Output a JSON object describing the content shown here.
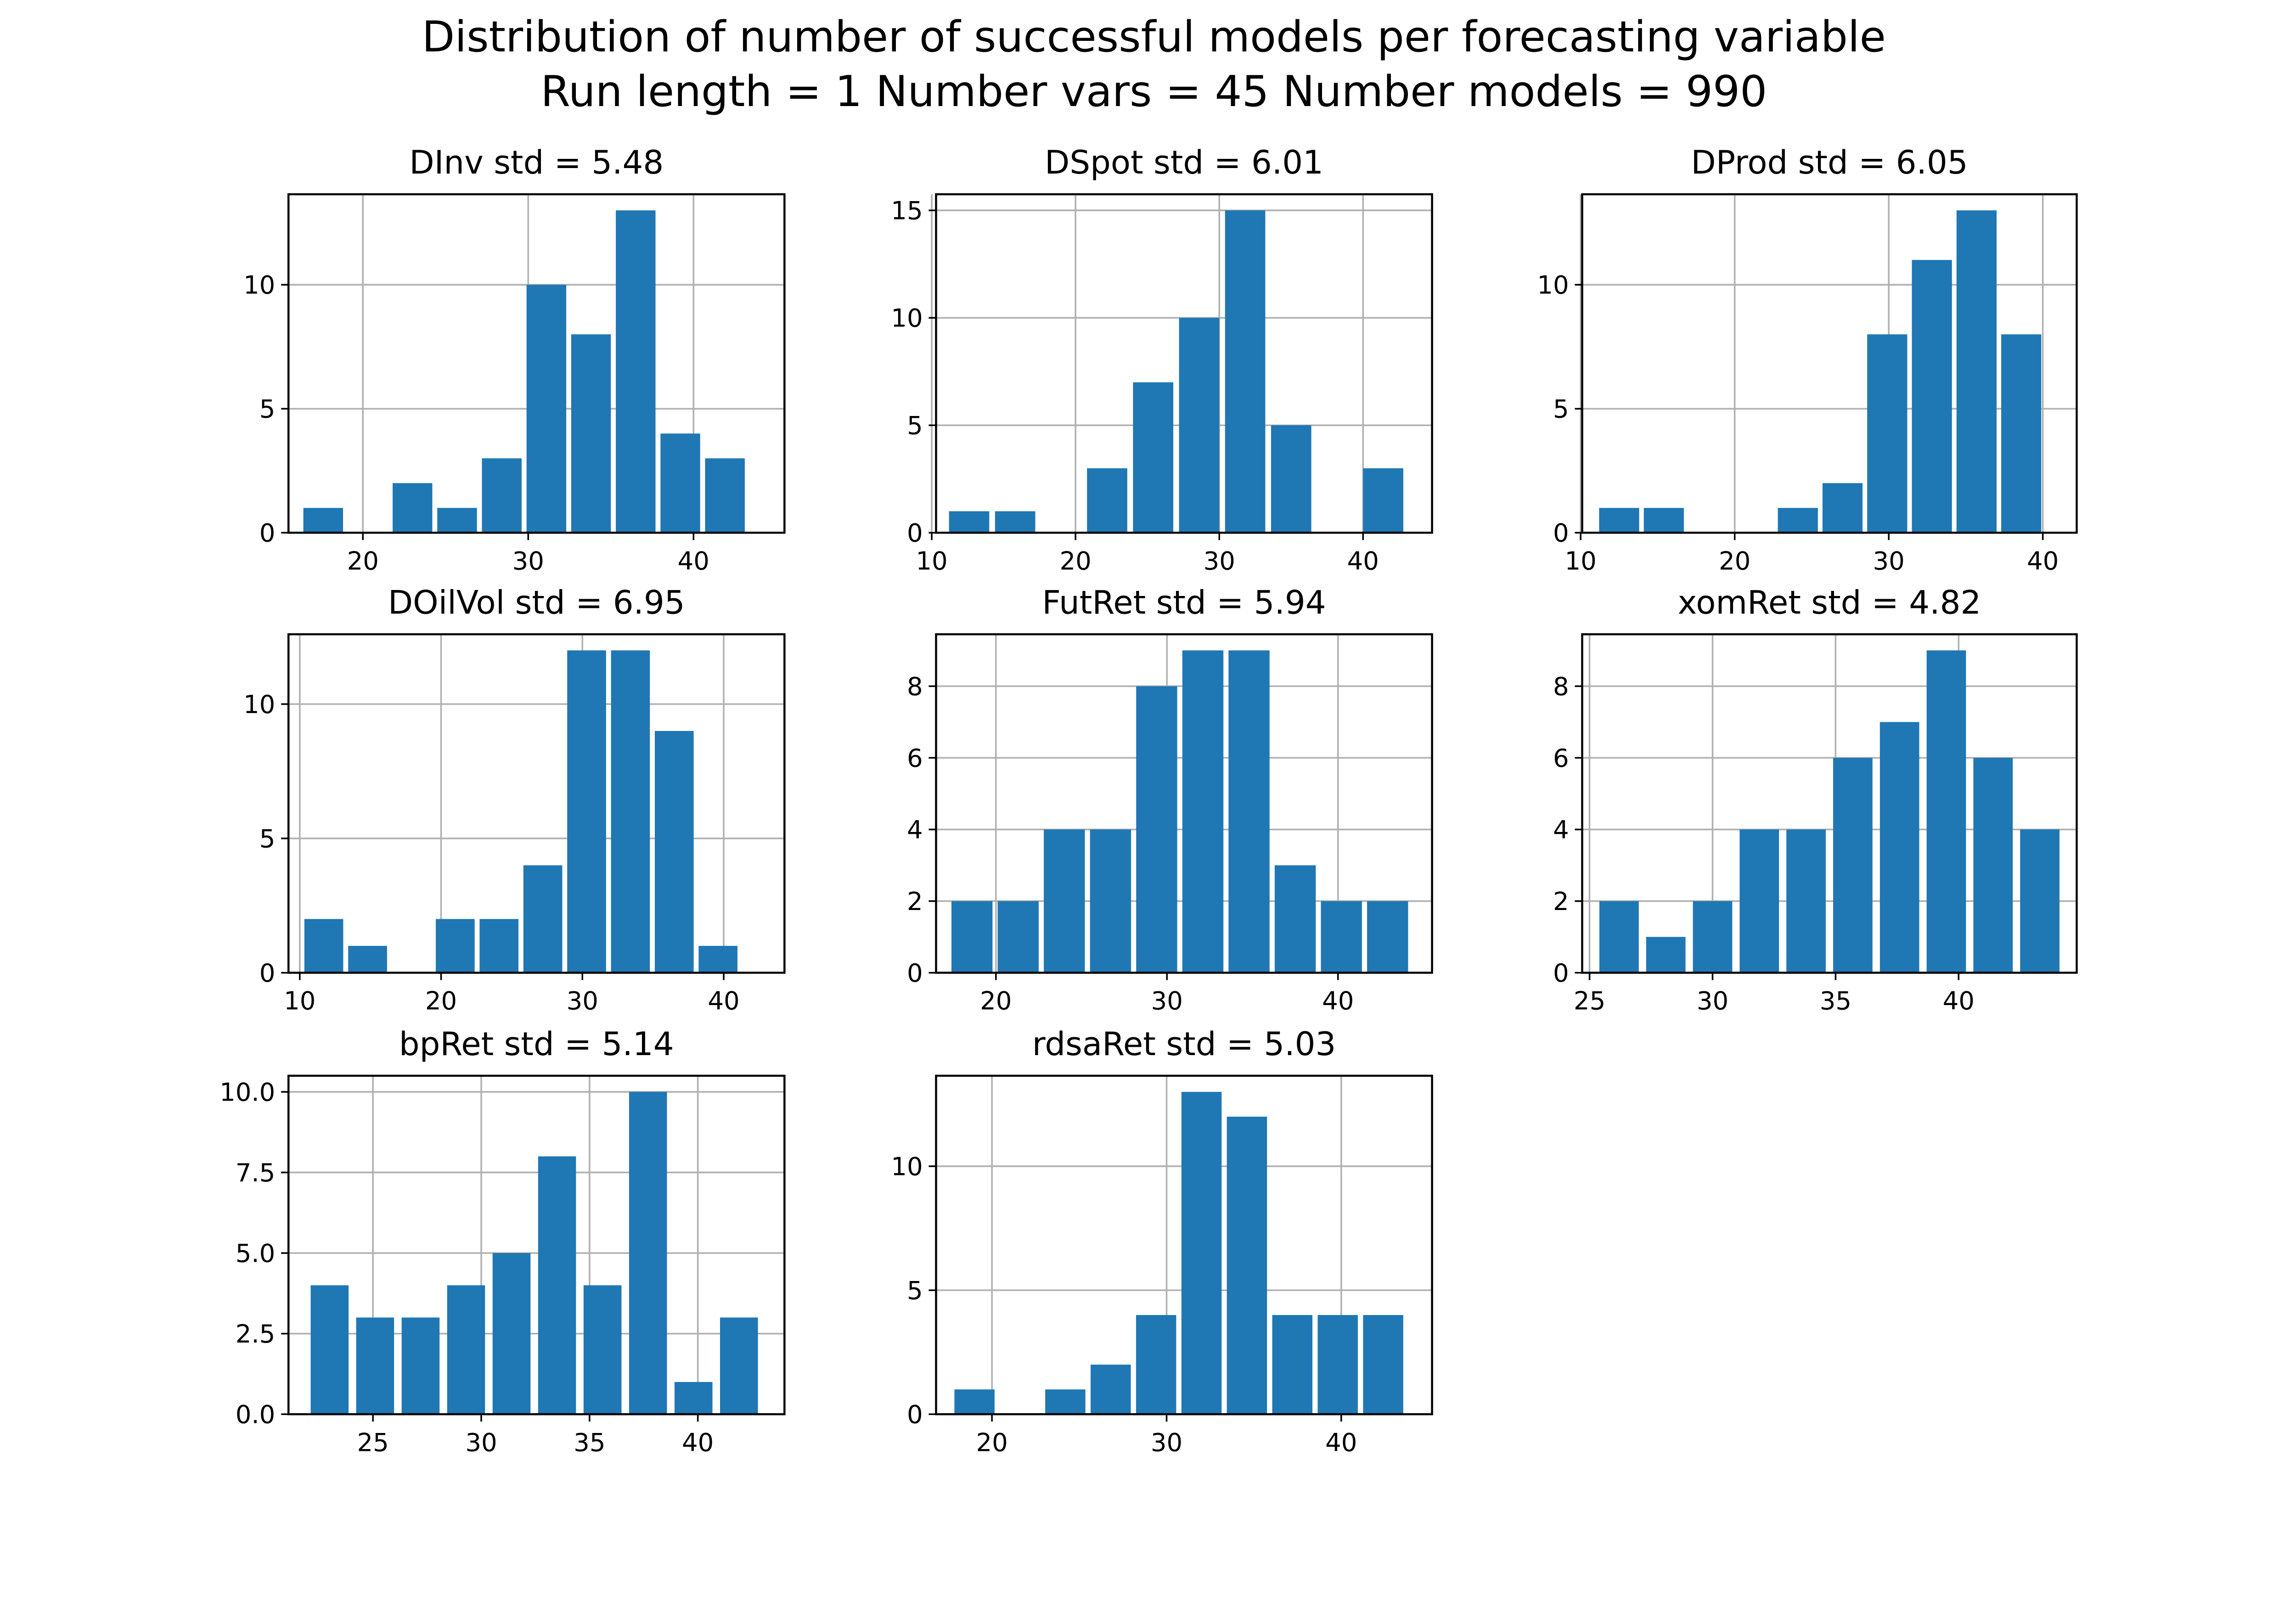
{
  "figure": {
    "title_line1": "Distribution of number of successful models per forecasting variable",
    "title_line2": "Run length = 1  Number vars = 45  Number models = 990"
  },
  "colors": {
    "bar": "#1f77b4",
    "grid": "#b0b0b0",
    "axes": "#000000",
    "background": "#ffffff"
  },
  "chart_data": [
    {
      "type": "bar",
      "title": "DInv std = 5.48",
      "grid": true,
      "xlim": [
        15.5,
        45.5
      ],
      "ylim": [
        0,
        13.65
      ],
      "xticks": [
        20,
        30,
        40
      ],
      "yticks": [
        0,
        5,
        10
      ],
      "bin_width": 2.4,
      "x": [
        17.6,
        20.3,
        23.0,
        25.7,
        28.4,
        31.1,
        33.8,
        36.5,
        39.2,
        41.9
      ],
      "values": [
        1,
        0,
        2,
        1,
        3,
        10,
        8,
        13,
        4,
        3
      ]
    },
    {
      "type": "bar",
      "title": "DSpot std = 6.01",
      "grid": true,
      "xlim": [
        10.3,
        44.8
      ],
      "ylim": [
        0,
        15.75
      ],
      "xticks": [
        10,
        20,
        30,
        40
      ],
      "yticks": [
        0,
        5,
        10,
        15
      ],
      "bin_width": 2.8,
      "x": [
        12.6,
        15.8,
        19.0,
        22.2,
        25.4,
        28.6,
        31.8,
        35.0,
        38.2,
        41.4
      ],
      "values": [
        1,
        1,
        0,
        3,
        7,
        10,
        15,
        5,
        0,
        3
      ]
    },
    {
      "type": "bar",
      "title": "DProd std = 6.05",
      "grid": true,
      "xlim": [
        10.1,
        42.2
      ],
      "ylim": [
        0,
        13.65
      ],
      "xticks": [
        10,
        20,
        30,
        40
      ],
      "yticks": [
        0,
        5,
        10
      ],
      "bin_width": 2.6,
      "x": [
        12.5,
        15.4,
        18.3,
        21.2,
        24.1,
        27.0,
        29.9,
        32.8,
        35.7,
        38.6
      ],
      "values": [
        1,
        1,
        0,
        0,
        1,
        2,
        8,
        11,
        13,
        8
      ]
    },
    {
      "type": "bar",
      "title": "DOilVol std = 6.95",
      "grid": true,
      "xlim": [
        9.2,
        44.3
      ],
      "ylim": [
        0,
        12.6
      ],
      "xticks": [
        10,
        20,
        30,
        40
      ],
      "yticks": [
        0,
        5,
        10
      ],
      "bin_width": 2.75,
      "x": [
        11.7,
        14.8,
        17.9,
        21.0,
        24.1,
        27.2,
        30.3,
        33.4,
        36.5,
        39.6
      ],
      "values": [
        2,
        1,
        0,
        2,
        2,
        4,
        12,
        12,
        9,
        1
      ]
    },
    {
      "type": "bar",
      "title": "FutRet std = 5.94",
      "grid": true,
      "xlim": [
        16.5,
        45.5
      ],
      "ylim": [
        0,
        9.45
      ],
      "xticks": [
        20,
        30,
        40
      ],
      "yticks": [
        0,
        2,
        4,
        6,
        8
      ],
      "bin_width": 2.4,
      "x": [
        18.6,
        21.3,
        24.0,
        26.7,
        29.4,
        32.1,
        34.8,
        37.5,
        40.2,
        42.9
      ],
      "values": [
        2,
        2,
        4,
        4,
        8,
        9,
        9,
        3,
        2,
        2
      ]
    },
    {
      "type": "bar",
      "title": "xomRet std = 4.82",
      "grid": true,
      "xlim": [
        24.7,
        44.8
      ],
      "ylim": [
        0,
        9.45
      ],
      "xticks": [
        25,
        30,
        35,
        40
      ],
      "yticks": [
        0,
        2,
        4,
        6,
        8
      ],
      "bin_width": 1.6,
      "x": [
        26.2,
        28.1,
        30.0,
        31.9,
        33.8,
        35.7,
        37.6,
        39.5,
        41.4,
        43.3
      ],
      "values": [
        2,
        1,
        2,
        4,
        4,
        6,
        7,
        9,
        6,
        4
      ]
    },
    {
      "type": "bar",
      "title": "bpRet std = 5.14",
      "grid": true,
      "xlim": [
        21.1,
        44.0
      ],
      "ylim": [
        0,
        10.5
      ],
      "xticks": [
        25,
        30,
        35,
        40
      ],
      "yticks": [
        0.0,
        2.5,
        5.0,
        7.5,
        10.0
      ],
      "ytick_labels": [
        "0.0",
        "2.5",
        "5.0",
        "7.5",
        "10.0"
      ],
      "bin_width": 1.75,
      "x": [
        23.0,
        25.1,
        27.2,
        29.3,
        31.4,
        33.5,
        35.6,
        37.7,
        39.8,
        41.9
      ],
      "values": [
        4,
        3,
        3,
        4,
        5,
        8,
        4,
        10,
        1,
        3
      ]
    },
    {
      "type": "bar",
      "title": "rdsaRet std = 5.03",
      "grid": true,
      "xlim": [
        16.8,
        45.2
      ],
      "ylim": [
        0,
        13.65
      ],
      "xticks": [
        20,
        30,
        40
      ],
      "yticks": [
        0,
        5,
        10
      ],
      "bin_width": 2.3,
      "x": [
        19.0,
        21.6,
        24.2,
        26.8,
        29.4,
        32.0,
        34.6,
        37.2,
        39.8,
        42.4
      ],
      "values": [
        1,
        0,
        1,
        2,
        4,
        13,
        12,
        4,
        4,
        4
      ]
    }
  ]
}
